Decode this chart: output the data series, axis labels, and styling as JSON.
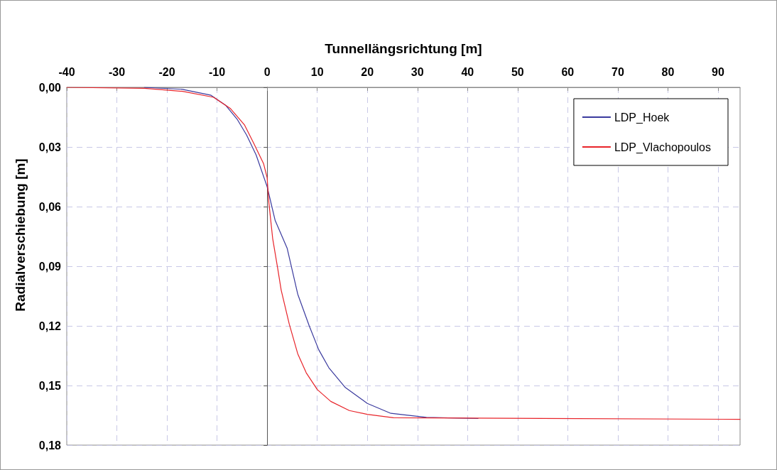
{
  "chart_data": {
    "type": "line",
    "xlabel": "Tunnellängsrichtung [m]",
    "ylabel": "Radialverschiebung [m]",
    "xlim": [
      -40,
      94.4
    ],
    "xticks": [
      -40,
      -30,
      -20,
      -10,
      0,
      10,
      20,
      30,
      40,
      50,
      60,
      70,
      80,
      90
    ],
    "ylim": [
      0.18,
      0
    ],
    "yticks": [
      {
        "value": 0,
        "label": "0,00"
      },
      {
        "value": 0.03,
        "label": "0,03"
      },
      {
        "value": 0.06,
        "label": "0,06"
      },
      {
        "value": 0.09,
        "label": "0,09"
      },
      {
        "value": 0.12,
        "label": "0,12"
      },
      {
        "value": 0.15,
        "label": "0,15"
      },
      {
        "value": 0.18,
        "label": "0,18"
      }
    ],
    "grid": true,
    "legend": "top right",
    "marker": "none",
    "line_style": "solid",
    "series": [
      {
        "name": "LDP_Hoek",
        "color": "#3a3a9e",
        "x": [
          -24.5,
          -16.9,
          -11.2,
          -8.3,
          -6,
          -4.1,
          -2.2,
          0,
          1.6,
          4,
          6.1,
          8.4,
          10.3,
          12.3,
          15.6,
          20,
          24.7,
          31.8,
          42.1
        ],
        "values": [
          0,
          0.001,
          0.004,
          0.009,
          0.016,
          0.024,
          0.034,
          0.05,
          0.067,
          0.081,
          0.104,
          0.12,
          0.132,
          0.141,
          0.151,
          0.159,
          0.164,
          0.166,
          0.1666
        ]
      },
      {
        "name": "LDP_Vlachopoulos",
        "color": "#e8242a",
        "x": [
          -40,
          -24.5,
          -16.9,
          -10.7,
          -7.4,
          -4.5,
          -2.7,
          -0.7,
          0,
          0.3,
          1.1,
          2.1,
          2.8,
          4.4,
          6.1,
          7.8,
          10,
          12.7,
          16.4,
          20,
          25.2,
          94.4
        ],
        "values": [
          0,
          0.0005,
          0.002,
          0.005,
          0.0105,
          0.019,
          0.028,
          0.0385,
          0.0455,
          0.057,
          0.076,
          0.091,
          0.102,
          0.119,
          0.134,
          0.1436,
          0.152,
          0.158,
          0.1626,
          0.1645,
          0.1662,
          0.167
        ]
      }
    ]
  }
}
